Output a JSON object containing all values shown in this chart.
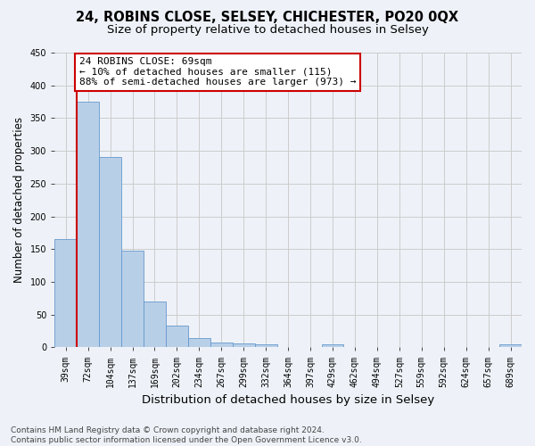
{
  "title_line1": "24, ROBINS CLOSE, SELSEY, CHICHESTER, PO20 0QX",
  "title_line2": "Size of property relative to detached houses in Selsey",
  "xlabel": "Distribution of detached houses by size in Selsey",
  "ylabel": "Number of detached properties",
  "categories": [
    "39sqm",
    "72sqm",
    "104sqm",
    "137sqm",
    "169sqm",
    "202sqm",
    "234sqm",
    "267sqm",
    "299sqm",
    "332sqm",
    "364sqm",
    "397sqm",
    "429sqm",
    "462sqm",
    "494sqm",
    "527sqm",
    "559sqm",
    "592sqm",
    "624sqm",
    "657sqm",
    "689sqm"
  ],
  "values": [
    165,
    375,
    290,
    147,
    70,
    33,
    14,
    7,
    6,
    4,
    0,
    0,
    4,
    0,
    0,
    0,
    0,
    0,
    0,
    0,
    4
  ],
  "bar_color": "#b8cfe8",
  "bar_edge_color": "#6699cc",
  "vline_color": "#cc0000",
  "annotation_text": "24 ROBINS CLOSE: 69sqm\n← 10% of detached houses are smaller (115)\n88% of semi-detached houses are larger (973) →",
  "annotation_box_color": "#ffffff",
  "annotation_box_edge": "#cc0000",
  "ylim": [
    0,
    450
  ],
  "yticks": [
    0,
    50,
    100,
    150,
    200,
    250,
    300,
    350,
    400,
    450
  ],
  "grid_color": "#cccccc",
  "bg_color": "#eef2f8",
  "footer_line1": "Contains HM Land Registry data © Crown copyright and database right 2024.",
  "footer_line2": "Contains public sector information licensed under the Open Government Licence v3.0.",
  "title_fontsize": 10.5,
  "subtitle_fontsize": 9.5,
  "tick_fontsize": 7,
  "ylabel_fontsize": 8.5,
  "xlabel_fontsize": 9.5,
  "annotation_fontsize": 8,
  "footer_fontsize": 6.5
}
